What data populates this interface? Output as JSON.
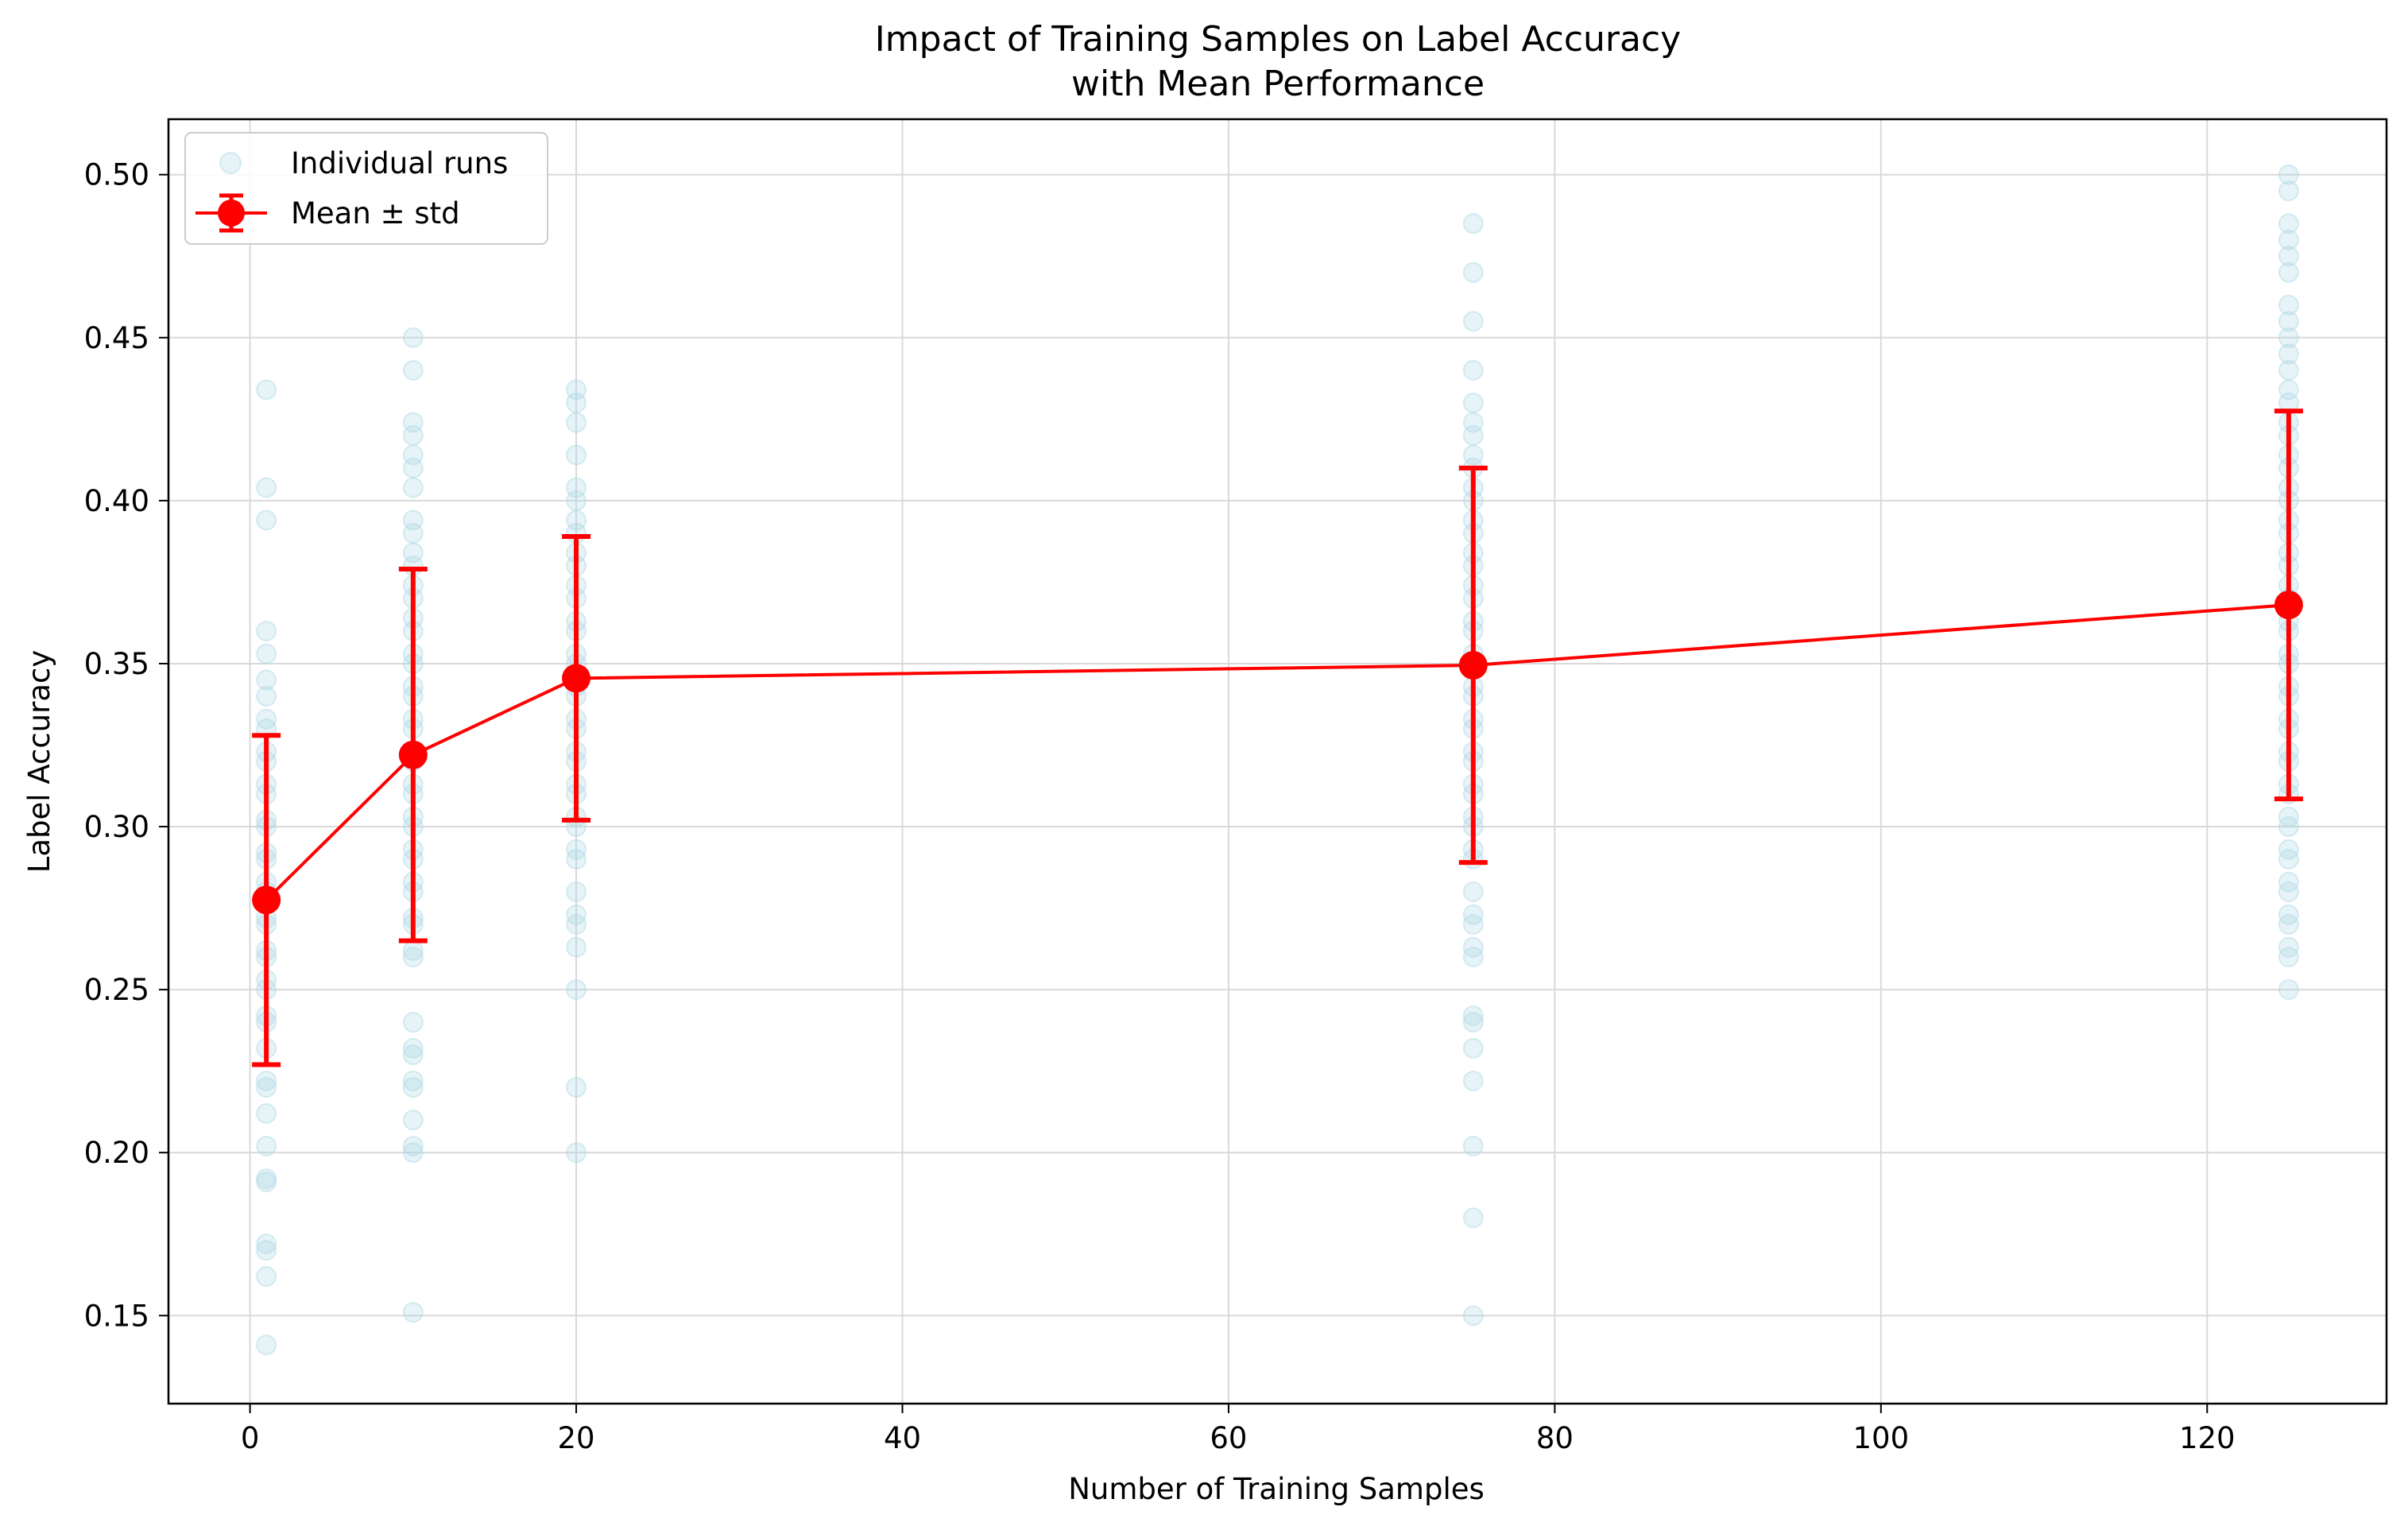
{
  "chart_data": {
    "type": "scatter",
    "title": "Impact of Training Samples on Label Accuracy",
    "subtitle": "with Mean Performance",
    "xlabel": "Number of Training Samples",
    "ylabel": "Label Accuracy",
    "xlim": [
      -5,
      131
    ],
    "ylim": [
      0.123,
      0.517
    ],
    "x_ticks": [
      0,
      20,
      40,
      60,
      80,
      100,
      120
    ],
    "x_tick_labels": [
      "0",
      "20",
      "40",
      "60",
      "80",
      "100",
      "120"
    ],
    "y_ticks": [
      0.15,
      0.2,
      0.25,
      0.3,
      0.35,
      0.4,
      0.45,
      0.5
    ],
    "y_tick_labels": [
      "0.15",
      "0.20",
      "0.25",
      "0.30",
      "0.35",
      "0.40",
      "0.45",
      "0.50"
    ],
    "grid": true,
    "legend_position": "top-left",
    "colors": {
      "individual_runs": "#add8e6",
      "mean": "#ff0000",
      "grid": "#d9d9d9",
      "axes": "#000000"
    },
    "series": [
      {
        "name": "Individual runs",
        "kind": "scatter",
        "points": [
          {
            "x": 1,
            "y": [
              0.141,
              0.162,
              0.17,
              0.172,
              0.191,
              0.192,
              0.202,
              0.212,
              0.22,
              0.222,
              0.232,
              0.24,
              0.242,
              0.25,
              0.253,
              0.26,
              0.262,
              0.27,
              0.272,
              0.28,
              0.283,
              0.29,
              0.292,
              0.3,
              0.302,
              0.31,
              0.313,
              0.32,
              0.323,
              0.33,
              0.333,
              0.34,
              0.345,
              0.353,
              0.36,
              0.394,
              0.404,
              0.434
            ]
          },
          {
            "x": 10,
            "y": [
              0.151,
              0.2,
              0.202,
              0.21,
              0.22,
              0.222,
              0.23,
              0.232,
              0.24,
              0.26,
              0.262,
              0.27,
              0.272,
              0.28,
              0.283,
              0.29,
              0.293,
              0.3,
              0.303,
              0.31,
              0.313,
              0.32,
              0.323,
              0.33,
              0.333,
              0.34,
              0.343,
              0.35,
              0.353,
              0.36,
              0.364,
              0.37,
              0.374,
              0.38,
              0.384,
              0.39,
              0.394,
              0.404,
              0.41,
              0.414,
              0.42,
              0.424,
              0.44,
              0.45
            ]
          },
          {
            "x": 20,
            "y": [
              0.2,
              0.22,
              0.25,
              0.263,
              0.27,
              0.273,
              0.28,
              0.29,
              0.293,
              0.3,
              0.303,
              0.31,
              0.313,
              0.32,
              0.323,
              0.33,
              0.333,
              0.34,
              0.343,
              0.35,
              0.353,
              0.36,
              0.363,
              0.37,
              0.374,
              0.38,
              0.384,
              0.39,
              0.394,
              0.4,
              0.404,
              0.414,
              0.424,
              0.43,
              0.434
            ]
          },
          {
            "x": 75,
            "y": [
              0.15,
              0.18,
              0.202,
              0.222,
              0.232,
              0.24,
              0.242,
              0.26,
              0.263,
              0.27,
              0.273,
              0.28,
              0.29,
              0.293,
              0.3,
              0.303,
              0.31,
              0.313,
              0.32,
              0.323,
              0.33,
              0.333,
              0.34,
              0.343,
              0.35,
              0.353,
              0.36,
              0.363,
              0.37,
              0.374,
              0.38,
              0.384,
              0.39,
              0.394,
              0.4,
              0.404,
              0.41,
              0.414,
              0.42,
              0.424,
              0.43,
              0.44,
              0.455,
              0.47,
              0.485
            ]
          },
          {
            "x": 125,
            "y": [
              0.25,
              0.26,
              0.263,
              0.27,
              0.273,
              0.28,
              0.283,
              0.29,
              0.293,
              0.3,
              0.303,
              0.31,
              0.313,
              0.32,
              0.323,
              0.33,
              0.333,
              0.34,
              0.343,
              0.35,
              0.353,
              0.36,
              0.363,
              0.37,
              0.374,
              0.38,
              0.384,
              0.39,
              0.394,
              0.4,
              0.404,
              0.41,
              0.414,
              0.42,
              0.424,
              0.43,
              0.434,
              0.44,
              0.445,
              0.45,
              0.455,
              0.46,
              0.47,
              0.475,
              0.48,
              0.485,
              0.495,
              0.5
            ]
          }
        ]
      },
      {
        "name": "Mean ± std",
        "kind": "errorbar-line",
        "x": [
          1,
          10,
          20,
          75,
          125
        ],
        "y": [
          0.2775,
          0.322,
          0.3455,
          0.3495,
          0.368
        ],
        "std": [
          0.0505,
          0.057,
          0.0435,
          0.0605,
          0.0595
        ]
      }
    ]
  }
}
